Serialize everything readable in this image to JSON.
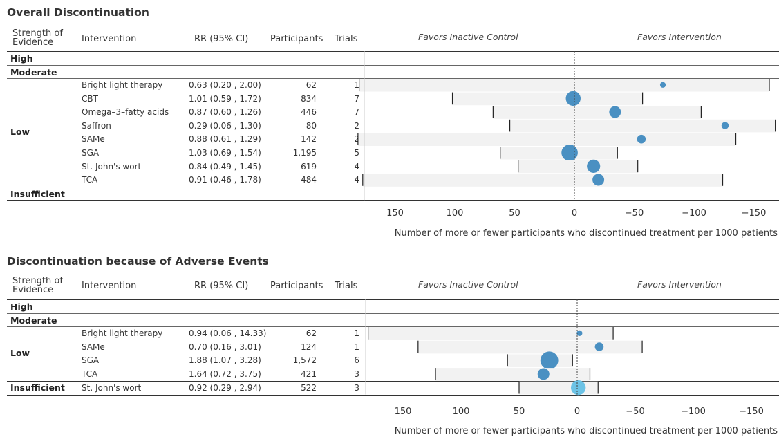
{
  "chart_data": [
    {
      "type": "forest",
      "title": "Overall Discontinuation",
      "columns": [
        "Strength of Evidence",
        "Intervention",
        "RR (95% CI)",
        "Participants",
        "Trials"
      ],
      "favors_left": "Favors Inactive Control",
      "favors_right": "Favors Intervention",
      "xlabel": "Number of more or fewer participants who discontinued treatment per 1000 patients",
      "x_ticks": [
        "150",
        "100",
        "50",
        "0",
        "−50",
        "−100",
        "−150"
      ],
      "xlim": [
        180,
        -180
      ],
      "groups": [
        {
          "label": "High",
          "rows": []
        },
        {
          "label": "Moderate",
          "rows": []
        },
        {
          "label": "Low",
          "rows": [
            {
              "intervention": "Bright light therapy",
              "rr": "0.63 (0.20 , 2.00)",
              "participants": "62",
              "trials": "1",
              "estimate": -74,
              "ci": [
                180,
                -163
              ],
              "size": 1,
              "color": "#4a90c2"
            },
            {
              "intervention": "CBT",
              "rr": "1.01 (0.59 , 1.72)",
              "participants": "834",
              "trials": "7",
              "estimate": 1,
              "ci": [
                102,
                -57
              ],
              "size": 7,
              "color": "#4a90c2"
            },
            {
              "intervention": "Omega–3–fatty acids",
              "rr": "0.87 (0.60 , 1.26)",
              "participants": "446",
              "trials": "7",
              "estimate": -34,
              "ci": [
                68,
                -106
              ],
              "size": 5,
              "color": "#4a90c2"
            },
            {
              "intervention": "Saffron",
              "rr": "0.29 (0.06 , 1.30)",
              "participants": "80",
              "trials": "2",
              "estimate": -126,
              "ci": [
                54,
                -168
              ],
              "size": 2,
              "color": "#4a90c2"
            },
            {
              "intervention": "SAMe",
              "rr": "0.88 (0.61 , 1.29)",
              "participants": "142",
              "trials": "2",
              "estimate": -56,
              "ci": [
                181,
                -135
              ],
              "size": 3,
              "color": "#4a90c2"
            },
            {
              "intervention": "SGA",
              "rr": "1.03 (0.69 , 1.54)",
              "participants": "1,195",
              "trials": "5",
              "estimate": 4,
              "ci": [
                62,
                -36
              ],
              "size": 8,
              "color": "#4a90c2"
            },
            {
              "intervention": "St. John's wort",
              "rr": "0.84 (0.49 , 1.45)",
              "participants": "619",
              "trials": "4",
              "estimate": -16,
              "ci": [
                47,
                -53
              ],
              "size": 6,
              "color": "#4a90c2"
            },
            {
              "intervention": "TCA",
              "rr": "0.91 (0.46 , 1.78)",
              "participants": "484",
              "trials": "4",
              "estimate": -20,
              "ci": [
                177,
                -124
              ],
              "size": 5,
              "color": "#4a90c2"
            }
          ]
        },
        {
          "label": "Insufficient",
          "rows": []
        }
      ]
    },
    {
      "type": "forest",
      "title": "Discontinuation because of Adverse Events",
      "columns": [
        "Strength of Evidence",
        "Intervention",
        "RR (95% CI)",
        "Participants",
        "Trials"
      ],
      "favors_left": "Favors Inactive Control",
      "favors_right": "Favors Intervention",
      "xlabel": "Number of more or fewer participants who discontinued treatment per 1000 patients",
      "x_ticks": [
        "150",
        "100",
        "50",
        "0",
        "−50",
        "−100",
        "−150"
      ],
      "xlim": [
        180,
        -180
      ],
      "groups": [
        {
          "label": "High",
          "rows": []
        },
        {
          "label": "Moderate",
          "rows": []
        },
        {
          "label": "Low",
          "rows": [
            {
              "intervention": "Bright light therapy",
              "rr": "0.94 (0.06 , 14.33)",
              "participants": "62",
              "trials": "1",
              "estimate": -2,
              "ci": [
                180,
                -31
              ],
              "size": 1,
              "color": "#4a90c2"
            },
            {
              "intervention": "SAMe",
              "rr": "0.70 (0.16 , 3.01)",
              "participants": "124",
              "trials": "1",
              "estimate": -19,
              "ci": [
                137,
                -56
              ],
              "size": 3,
              "color": "#4a90c2"
            },
            {
              "intervention": "SGA",
              "rr": "1.88 (1.07 , 3.28)",
              "participants": "1,572",
              "trials": "6",
              "estimate": 24,
              "ci": [
                60,
                4
              ],
              "size": 9,
              "color": "#4a90c2"
            },
            {
              "intervention": "TCA",
              "rr": "1.64 (0.72 , 3.75)",
              "participants": "421",
              "trials": "3",
              "estimate": 29,
              "ci": [
                122,
                -11
              ],
              "size": 5,
              "color": "#4a90c2"
            }
          ]
        },
        {
          "label": "Insufficient",
          "rows": [
            {
              "intervention": "St. John's wort",
              "rr": "0.92 (0.29 , 2.94)",
              "participants": "522",
              "trials": "3",
              "estimate": -1,
              "ci": [
                50,
                -18
              ],
              "size": 7,
              "color": "#6cc3e6"
            }
          ]
        }
      ]
    }
  ]
}
